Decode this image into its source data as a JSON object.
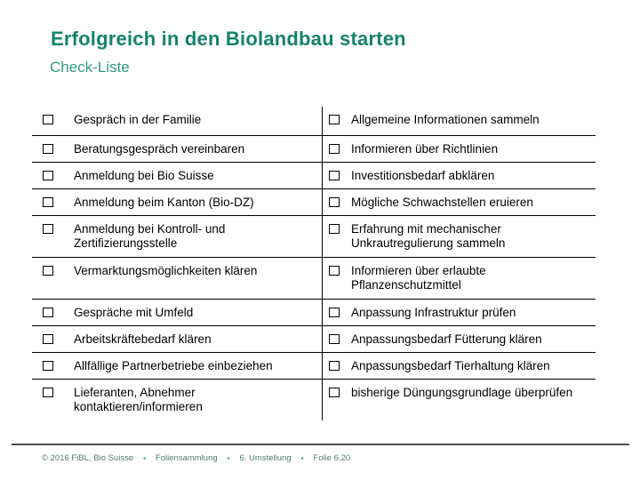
{
  "slide": {
    "title": "Erfolgreich in den Biolandbau starten",
    "subtitle": "Check-Liste"
  },
  "checklist": {
    "rows": [
      {
        "left": "Gespräch in der Familie",
        "right": "Allgemeine Informationen sammeln"
      },
      {
        "left": "Beratungsgespräch vereinbaren",
        "right": "Informieren über Richtlinien"
      },
      {
        "left": "Anmeldung bei Bio Suisse",
        "right": "Investitionsbedarf abklären"
      },
      {
        "left": "Anmeldung beim Kanton (Bio-DZ)",
        "right": "Mögliche Schwachstellen eruieren"
      },
      {
        "left": "Anmeldung bei Kontroll- und Zertifizierungsstelle",
        "right": "Erfahrung mit mechanischer Unkrautregulierung sammeln"
      },
      {
        "left": "Vermarktungsmöglichkeiten klären",
        "right": "Informieren über erlaubte Pflanzenschutzmittel"
      },
      {
        "left": "Gespräche mit Umfeld",
        "right": "Anpassung Infrastruktur prüfen"
      },
      {
        "left": "Arbeitskräftebedarf klären",
        "right": "Anpassungsbedarf Fütterung klären"
      },
      {
        "left": "Allfällige Partnerbetriebe einbeziehen",
        "right": "Anpassungsbedarf Tierhaltung klären"
      },
      {
        "left": "Lieferanten, Abnehmer kontaktieren/informieren",
        "right": "bisherige Düngungsgrundlage überprüfen"
      }
    ]
  },
  "footer": {
    "segments": [
      "© 2016 FiBL, Bio Suisse",
      "Foliensammlung",
      "6. Umstellung",
      "Folie 6.20"
    ],
    "separator": "▪"
  },
  "icons": {
    "checkbox": "empty-square"
  },
  "colors": {
    "title": "#15836A",
    "subtitle": "#2F9B7D",
    "table_text": "#000000",
    "table_lines": "#000000",
    "footer_line": "#4D4D4D",
    "footer_text": "#527B71",
    "footer_separator": "#2E8B74"
  }
}
